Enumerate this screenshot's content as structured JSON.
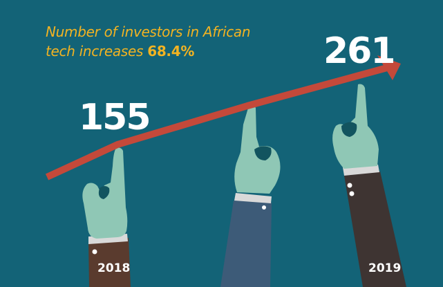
{
  "headline": {
    "line1": "Number of investors in African",
    "line2_prefix": "tech increases",
    "percent": "68.4%"
  },
  "colors": {
    "background": "#136377",
    "headline": "#f2b322",
    "arrow": "#c4493a",
    "hand": "#8fc7b5",
    "hand_shadow": "#12545f",
    "sleeve_2018": "#5a3b2e",
    "sleeve_middle": "#3d5b78",
    "sleeve_2019": "#3e3432",
    "cuff": "#d9d9d9"
  },
  "chart_data": {
    "type": "line",
    "categories": [
      "2018",
      "2019"
    ],
    "series": [
      {
        "values": [
          155,
          261
        ]
      }
    ],
    "value_labels": [
      "155",
      "261"
    ],
    "title": "Number of investors in African tech increases 68.4%",
    "annotation": "68.4%",
    "xlabel": "",
    "ylabel": "",
    "grid": false,
    "legend": "none"
  }
}
